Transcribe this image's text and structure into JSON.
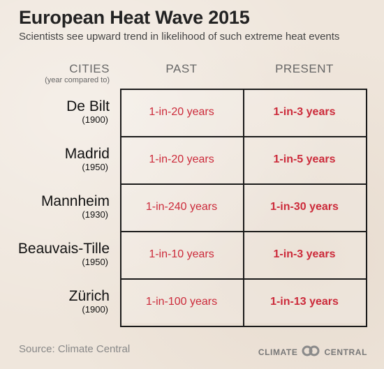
{
  "title": "European Heat Wave 2015",
  "subtitle": "Scientists see upward trend in likelihood of such extreme heat events",
  "headers": {
    "cities": "CITIES",
    "cities_sub": "(year compared to)",
    "past": "PAST",
    "present": "PRESENT"
  },
  "chart_data": {
    "type": "table",
    "title": "European Heat Wave 2015",
    "subtitle": "Scientists see upward trend in likelihood of such extreme heat events",
    "columns": [
      "CITIES",
      "PAST",
      "PRESENT"
    ],
    "rows": [
      {
        "city": "De Bilt",
        "year": "(1900)",
        "past": "1-in-20 years",
        "present": "1-in-3 years"
      },
      {
        "city": "Madrid",
        "year": "(1950)",
        "past": "1-in-20 years",
        "present": "1-in-5 years"
      },
      {
        "city": "Mannheim",
        "year": "(1930)",
        "past": "1-in-240 years",
        "present": "1-in-30 years"
      },
      {
        "city": "Beauvais-Tille",
        "year": "(1950)",
        "past": "1-in-10 years",
        "present": "1-in-3 years"
      },
      {
        "city": "Zürich",
        "year": "(1900)",
        "past": "1-in-100 years",
        "present": "1-in-13 years"
      }
    ]
  },
  "footer": {
    "source": "Source: Climate Central",
    "brand_left": "CLIMATE",
    "brand_right": "CENTRAL",
    "logo_icon": "linked-rings-icon"
  },
  "colors": {
    "accent": "#cc2a3a",
    "background": "#efe6dc",
    "grid": "#1a1a1a"
  }
}
